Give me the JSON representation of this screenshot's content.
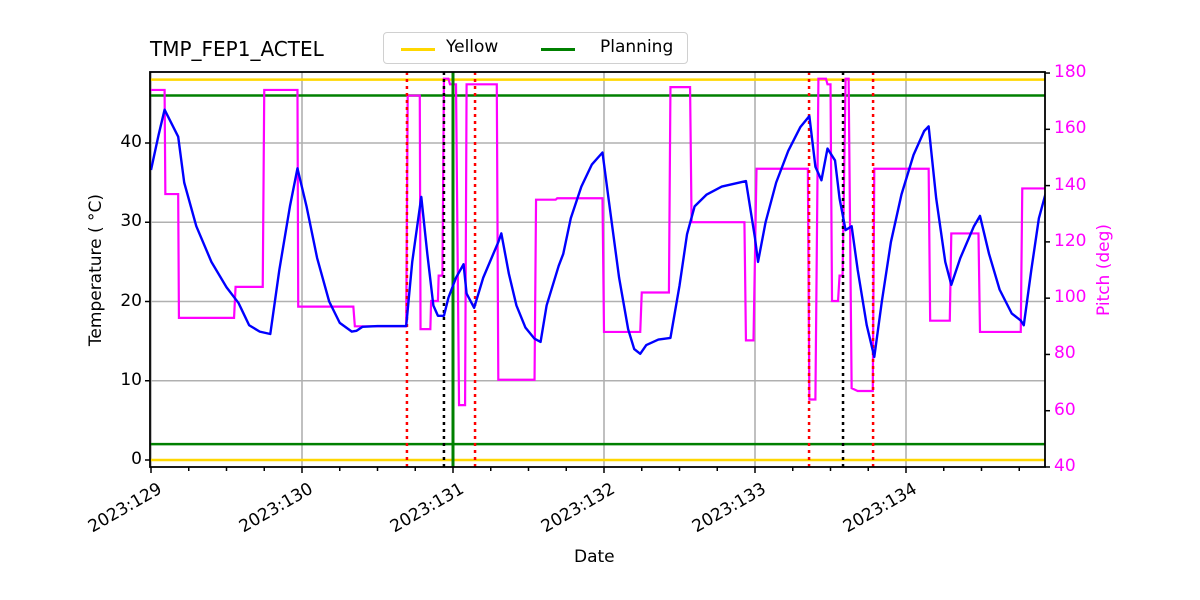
{
  "title": "TMP_FEP1_ACTEL",
  "legend": [
    {
      "label": "Yellow",
      "color": "#ffd700"
    },
    {
      "label": "Planning",
      "color": "#008000"
    }
  ],
  "axes": {
    "xlabel": "Date",
    "ylabel_left": "Temperature ( °C)",
    "ylabel_right": "Pitch (deg)"
  },
  "chart_data": {
    "type": "line",
    "title": "TMP_FEP1_ACTEL",
    "xlabel": "Date",
    "ylabel": "Temperature (°C)",
    "ylabel_right": "Pitch (deg)",
    "xlim_days": [
      129.0,
      134.93
    ],
    "ylim": [
      -1,
      49
    ],
    "ylim_right": [
      40,
      180
    ],
    "grid": true,
    "legend_position": "top-center",
    "x_ticks": [
      "2023:129",
      "2023:130",
      "2023:131",
      "2023:132",
      "2023:133",
      "2023:134"
    ],
    "y_ticks_left": [
      0,
      10,
      20,
      30,
      40
    ],
    "y_ticks_right": [
      40,
      60,
      80,
      100,
      120,
      140,
      160,
      180
    ],
    "limits": {
      "yellow": [
        0,
        48
      ],
      "planning": [
        2,
        46
      ],
      "planning_vertical_day": 131.0
    },
    "red_dotted_days": [
      130.695,
      131.146,
      133.358,
      133.782
    ],
    "black_dotted_days": [
      130.94,
      133.583
    ],
    "colors": {
      "temperature": "#0000ff",
      "pitch": "#ff00ff",
      "yellow": "#ffd700",
      "planning": "#008000",
      "red_marker": "#ff0000",
      "black_marker": "#000000",
      "grid": "#b0b0b0"
    },
    "series": [
      {
        "name": "Temperature",
        "axis": "left",
        "points": [
          [
            129.0,
            36.6
          ],
          [
            129.05,
            41.0
          ],
          [
            129.09,
            44.2
          ],
          [
            129.18,
            40.8
          ],
          [
            129.22,
            35.0
          ],
          [
            129.3,
            29.5
          ],
          [
            129.4,
            25.0
          ],
          [
            129.5,
            21.8
          ],
          [
            129.58,
            19.8
          ],
          [
            129.6,
            19.0
          ],
          [
            129.65,
            17.0
          ],
          [
            129.72,
            16.2
          ],
          [
            129.79,
            15.9
          ],
          [
            129.85,
            24.0
          ],
          [
            129.92,
            32.0
          ],
          [
            129.97,
            36.8
          ],
          [
            130.03,
            32.0
          ],
          [
            130.1,
            25.5
          ],
          [
            130.18,
            20.0
          ],
          [
            130.25,
            17.3
          ],
          [
            130.33,
            16.2
          ],
          [
            130.36,
            16.3
          ],
          [
            130.4,
            16.8
          ],
          [
            130.5,
            16.9
          ],
          [
            130.69,
            16.9
          ],
          [
            130.73,
            25.0
          ],
          [
            130.79,
            33.2
          ],
          [
            130.83,
            26.0
          ],
          [
            130.87,
            19.5
          ],
          [
            130.9,
            18.2
          ],
          [
            130.94,
            18.2
          ],
          [
            130.97,
            20.5
          ],
          [
            131.02,
            23.0
          ],
          [
            131.07,
            24.7
          ],
          [
            131.09,
            21.0
          ],
          [
            131.14,
            19.2
          ],
          [
            131.2,
            23.0
          ],
          [
            131.3,
            27.5
          ],
          [
            131.32,
            28.6
          ],
          [
            131.37,
            23.5
          ],
          [
            131.42,
            19.5
          ],
          [
            131.48,
            16.7
          ],
          [
            131.54,
            15.3
          ],
          [
            131.58,
            14.9
          ],
          [
            131.62,
            19.5
          ],
          [
            131.7,
            24.5
          ],
          [
            131.73,
            26.0
          ],
          [
            131.78,
            30.5
          ],
          [
            131.85,
            34.5
          ],
          [
            131.92,
            37.3
          ],
          [
            131.99,
            38.8
          ],
          [
            132.03,
            33.0
          ],
          [
            132.1,
            23.0
          ],
          [
            132.16,
            16.5
          ],
          [
            132.2,
            14.0
          ],
          [
            132.24,
            13.4
          ],
          [
            132.28,
            14.5
          ],
          [
            132.36,
            15.2
          ],
          [
            132.44,
            15.4
          ],
          [
            132.5,
            22.0
          ],
          [
            132.55,
            28.5
          ],
          [
            132.6,
            32.0
          ],
          [
            132.68,
            33.5
          ],
          [
            132.78,
            34.5
          ],
          [
            132.94,
            35.2
          ],
          [
            133.0,
            28.0
          ],
          [
            133.02,
            25.0
          ],
          [
            133.07,
            30.0
          ],
          [
            133.14,
            35.0
          ],
          [
            133.22,
            39.0
          ],
          [
            133.3,
            42.0
          ],
          [
            133.36,
            43.4
          ],
          [
            133.4,
            37.0
          ],
          [
            133.44,
            35.3
          ],
          [
            133.48,
            39.3
          ],
          [
            133.53,
            37.8
          ],
          [
            133.56,
            33.0
          ],
          [
            133.6,
            29.0
          ],
          [
            133.64,
            29.5
          ],
          [
            133.68,
            24.0
          ],
          [
            133.74,
            17.0
          ],
          [
            133.79,
            13.0
          ],
          [
            133.84,
            20.0
          ],
          [
            133.9,
            27.5
          ],
          [
            133.97,
            33.5
          ],
          [
            134.05,
            38.5
          ],
          [
            134.12,
            41.5
          ],
          [
            134.15,
            42.1
          ],
          [
            134.2,
            33.0
          ],
          [
            134.26,
            25.0
          ],
          [
            134.3,
            22.1
          ],
          [
            134.36,
            25.5
          ],
          [
            134.45,
            29.5
          ],
          [
            134.49,
            30.8
          ],
          [
            134.55,
            26.0
          ],
          [
            134.62,
            21.5
          ],
          [
            134.7,
            18.5
          ],
          [
            134.76,
            17.6
          ],
          [
            134.78,
            17.0
          ],
          [
            134.83,
            24.0
          ],
          [
            134.88,
            30.5
          ],
          [
            134.93,
            34.0
          ]
        ]
      },
      {
        "name": "Pitch",
        "axis": "right",
        "points": [
          [
            129.0,
            174
          ],
          [
            129.09,
            174
          ],
          [
            129.095,
            137
          ],
          [
            129.18,
            137
          ],
          [
            129.185,
            93
          ],
          [
            129.55,
            93
          ],
          [
            129.56,
            104
          ],
          [
            129.74,
            104
          ],
          [
            129.75,
            174
          ],
          [
            129.97,
            174
          ],
          [
            129.975,
            97
          ],
          [
            130.34,
            97
          ],
          [
            130.35,
            90
          ],
          [
            130.69,
            90
          ],
          [
            130.7,
            172
          ],
          [
            130.78,
            172
          ],
          [
            130.785,
            89
          ],
          [
            130.85,
            89
          ],
          [
            130.855,
            99
          ],
          [
            130.9,
            99
          ],
          [
            130.905,
            108
          ],
          [
            130.93,
            108
          ],
          [
            130.94,
            178
          ],
          [
            130.97,
            178
          ],
          [
            130.98,
            176
          ],
          [
            131.02,
            176
          ],
          [
            131.04,
            62
          ],
          [
            131.08,
            62
          ],
          [
            131.09,
            176
          ],
          [
            131.29,
            176
          ],
          [
            131.3,
            71
          ],
          [
            131.54,
            71
          ],
          [
            131.55,
            135
          ],
          [
            131.68,
            135
          ],
          [
            131.69,
            135.5
          ],
          [
            131.99,
            135.5
          ],
          [
            132.0,
            88
          ],
          [
            132.24,
            88
          ],
          [
            132.25,
            102
          ],
          [
            132.43,
            102
          ],
          [
            132.44,
            175
          ],
          [
            132.57,
            175
          ],
          [
            132.58,
            127
          ],
          [
            132.93,
            127
          ],
          [
            132.94,
            85
          ],
          [
            132.99,
            85
          ],
          [
            133.01,
            146
          ],
          [
            133.35,
            146
          ],
          [
            133.36,
            64
          ],
          [
            133.4,
            64
          ],
          [
            133.42,
            178
          ],
          [
            133.47,
            178
          ],
          [
            133.48,
            176
          ],
          [
            133.5,
            176
          ],
          [
            133.51,
            99
          ],
          [
            133.55,
            99
          ],
          [
            133.56,
            108
          ],
          [
            133.58,
            108
          ],
          [
            133.6,
            178
          ],
          [
            133.62,
            178
          ],
          [
            133.64,
            68
          ],
          [
            133.68,
            67
          ],
          [
            133.78,
            67
          ],
          [
            133.79,
            146
          ],
          [
            134.15,
            146
          ],
          [
            134.16,
            92
          ],
          [
            134.29,
            92
          ],
          [
            134.3,
            123
          ],
          [
            134.48,
            123
          ],
          [
            134.49,
            88
          ],
          [
            134.76,
            88
          ],
          [
            134.77,
            139
          ],
          [
            134.93,
            139
          ]
        ]
      }
    ]
  }
}
